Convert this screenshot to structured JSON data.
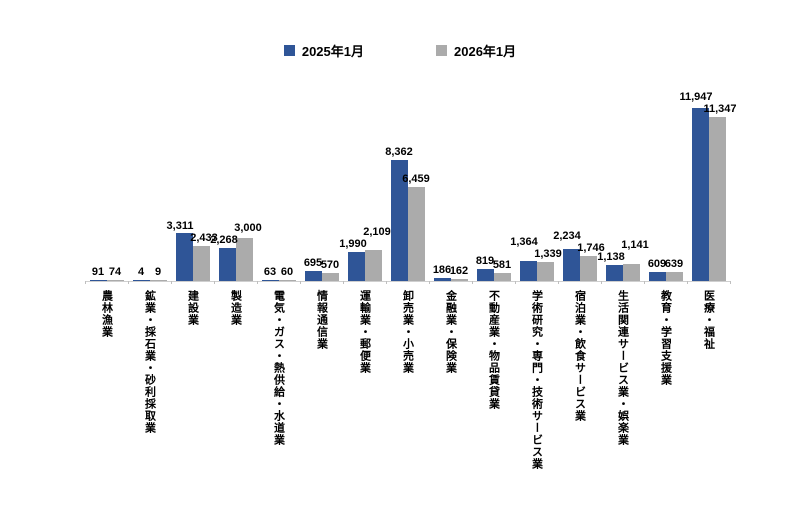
{
  "chart_data": {
    "type": "bar",
    "title": "",
    "xlabel": "",
    "ylabel": "",
    "grid": false,
    "value_labels": true,
    "legend_position": "top",
    "ylim": [
      0,
      12400
    ],
    "axis_color": "#bfbfbf",
    "label_color": "#000000",
    "categories": [
      "農林漁業",
      "鉱業・採石業・砂利採取業",
      "建設業",
      "製造業",
      "電気・ガス・熱供給・水道業",
      "情報通信業",
      "運輸業・郵便業",
      "卸売業・小売業",
      "金融業・保険業",
      "不動産業・物品賃貸業",
      "学術研究・専門・技術サービス業",
      "宿泊業・飲食サービス業",
      "生活関連サービス業・娯楽業",
      "教育・学習支援業",
      "医療・福祉"
    ],
    "series": [
      {
        "name": "2025年1月",
        "color": "#2f5597",
        "values": [
          91,
          4,
          3311,
          2268,
          63,
          695,
          1990,
          8362,
          186,
          819,
          1364,
          2234,
          1138,
          609,
          11947
        ]
      },
      {
        "name": "2026年1月",
        "color": "#ababab",
        "values": [
          74,
          9,
          2433,
          3000,
          60,
          570,
          2109,
          6459,
          162,
          581,
          1339,
          1746,
          1141,
          639,
          11347
        ]
      }
    ]
  }
}
